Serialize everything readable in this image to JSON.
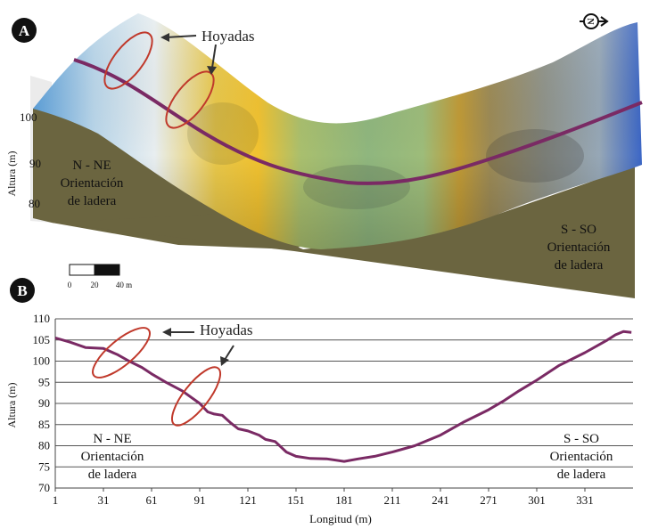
{
  "panel_a": {
    "label": "A",
    "hollows_label": "Hoyadas",
    "left_slope_line1": "N - NE",
    "left_slope_line2": "Orientación",
    "left_slope_line3": "de ladera",
    "right_slope_line1": "S - SO",
    "right_slope_line2": "Orientación",
    "right_slope_line3": "de ladera",
    "ylabel": "Altura (m)",
    "yticks": [
      "100",
      "90",
      "80"
    ],
    "scale_bar_labels": [
      "0",
      "20",
      "40 m"
    ],
    "north_symbol": "N",
    "colors": {
      "ground": "#6b6540",
      "profile_line": "#7a2a64",
      "ellipse": "#c0392b"
    }
  },
  "chart_data": {
    "type": "line",
    "label": "B",
    "xlabel": "Longitud (m)",
    "ylabel": "Altura (m)",
    "xlim": [
      1,
      361
    ],
    "ylim": [
      70,
      110
    ],
    "xticks": [
      1,
      31,
      61,
      91,
      121,
      151,
      181,
      211,
      241,
      271,
      301,
      331
    ],
    "yticks": [
      70,
      75,
      80,
      85,
      90,
      95,
      100,
      105,
      110
    ],
    "grid": "horizontal",
    "color": "#7a2a64",
    "x": [
      1,
      10,
      20,
      31,
      40,
      47,
      55,
      61,
      70,
      80,
      91,
      96,
      100,
      105,
      110,
      115,
      121,
      128,
      132,
      138,
      145,
      151,
      160,
      170,
      181,
      190,
      200,
      211,
      225,
      241,
      255,
      271,
      280,
      290,
      301,
      315,
      331,
      345,
      350,
      355,
      360
    ],
    "y": [
      105.5,
      104.5,
      103.2,
      103.0,
      101.5,
      100.0,
      98.5,
      97.0,
      95.0,
      93.0,
      90.0,
      88.0,
      87.5,
      87.2,
      85.5,
      84.0,
      83.5,
      82.5,
      81.5,
      81.0,
      78.5,
      77.5,
      77.0,
      76.9,
      76.3,
      76.9,
      77.5,
      78.5,
      80.0,
      82.5,
      85.5,
      88.5,
      90.5,
      93.0,
      95.5,
      99.0,
      102.0,
      105.0,
      106.2,
      107.0,
      106.8
    ],
    "annotations": {
      "hollows_label": "Hoyadas",
      "left_slope_line1": "N - NE",
      "left_slope_line2": "Orientación",
      "left_slope_line3": "de ladera",
      "right_slope_line1": "S - SO",
      "right_slope_line2": "Orientación",
      "right_slope_line3": "de ladera"
    }
  }
}
